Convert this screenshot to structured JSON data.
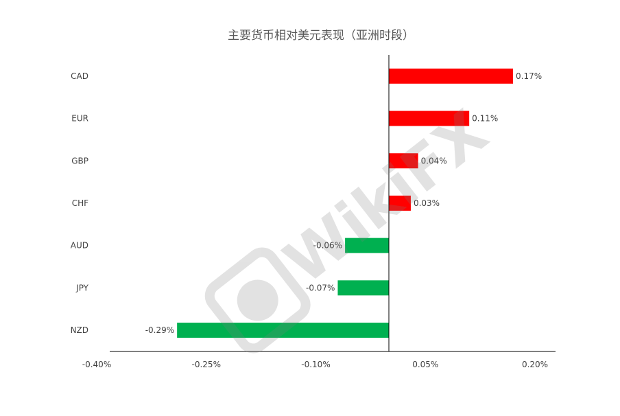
{
  "chart_data": {
    "type": "bar",
    "orientation": "horizontal",
    "title": "主要货币相对美元表现（亚洲时段）",
    "categories": [
      "CAD",
      "EUR",
      "GBP",
      "CHF",
      "AUD",
      "JPY",
      "NZD"
    ],
    "values": [
      0.17,
      0.11,
      0.04,
      0.03,
      -0.06,
      -0.07,
      -0.29
    ],
    "data_labels": [
      "0.17%",
      "0.11%",
      "0.04%",
      "0.03%",
      "-0.06%",
      "-0.07%",
      "-0.29%"
    ],
    "x_ticks": [
      -0.4,
      -0.25,
      -0.1,
      0.05,
      0.2
    ],
    "x_tick_labels": [
      "-0.40%",
      "-0.25%",
      "-0.10%",
      "0.05%",
      "0.20%"
    ],
    "xlim": [
      -0.4,
      0.2
    ],
    "colors": {
      "positive": "#ff0000",
      "negative": "#00b050"
    },
    "grid": false,
    "legend": "none"
  },
  "watermark": {
    "text": "WikiFX",
    "icon": "eagle-logo-icon"
  }
}
